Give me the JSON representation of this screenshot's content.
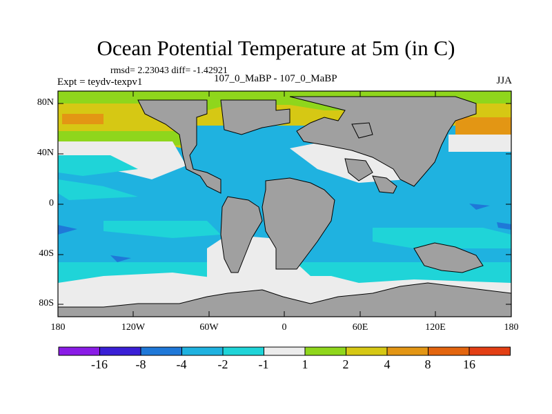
{
  "figure": {
    "title": "Ocean Potential Temperature at 5m (in C)",
    "stats": "rmsd= 2.23043 diff= -1.42921",
    "expt_label": "Expt = teydv-texpv1",
    "comparison_label": "107_0_MaBP - 107_0_MaBP",
    "season": "JJA"
  },
  "axes": {
    "y_ticks": [
      "80N",
      "40N",
      "0",
      "40S",
      "80S"
    ],
    "x_ticks": [
      "180",
      "120W",
      "60W",
      "0",
      "60E",
      "120E",
      "180"
    ]
  },
  "colorbar": {
    "labels": [
      "-16",
      "-8",
      "-4",
      "-2",
      "-1",
      "1",
      "2",
      "4",
      "8",
      "16"
    ],
    "colors": [
      "#8a1ce6",
      "#3a1fd6",
      "#1f78d8",
      "#1fb2e0",
      "#1fd4d8",
      "#ececec",
      "#8fd61c",
      "#d6c814",
      "#e39614",
      "#e3650f",
      "#e33f14"
    ]
  },
  "map_colors": {
    "land": "#a0a0a0",
    "near_zero": "#ececec",
    "slight_cool": "#1fd4d8",
    "cool": "#1fb2e0",
    "cold": "#1f78d8",
    "warm_green": "#8fd61c",
    "warm_yellow": "#d6c814",
    "warm_orange": "#e39614"
  }
}
